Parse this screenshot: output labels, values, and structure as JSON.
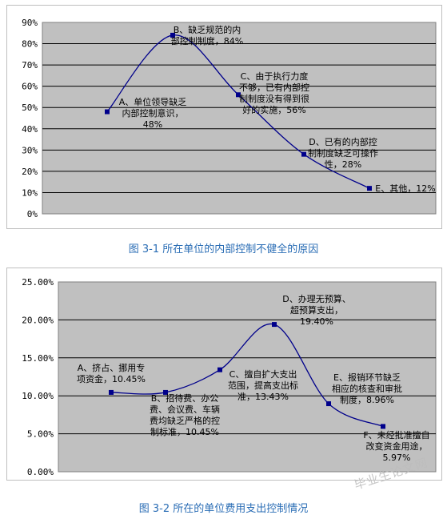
{
  "chart_data": [
    {
      "type": "line",
      "title": "",
      "xlabel": "",
      "ylabel": "",
      "ylim": [
        0,
        90
      ],
      "yticks": [
        "0%",
        "10%",
        "20%",
        "30%",
        "40%",
        "50%",
        "60%",
        "70%",
        "80%",
        "90%"
      ],
      "grid": true,
      "plot_background": "#c0c0c0",
      "line_color": "#00008b",
      "categories": [
        "A",
        "B",
        "C",
        "D",
        "E"
      ],
      "values": [
        48,
        84,
        56,
        28,
        12
      ],
      "data_labels": [
        [
          "A、单位领导缺乏",
          "内部控制意识，",
          "48%"
        ],
        [
          "B、缺乏规范的内",
          "部控制制度，84%"
        ],
        [
          "C、由于执行力度",
          "不够，已有内部控",
          "制制度没有得到很",
          "好的实施，56%"
        ],
        [
          "D、已有的内部控",
          "制制度缺乏可操作",
          "性，28%"
        ],
        [
          "E、其他，12%"
        ]
      ]
    },
    {
      "type": "line",
      "title": "",
      "xlabel": "",
      "ylabel": "",
      "ylim": [
        0,
        25
      ],
      "yticks": [
        "0.00%",
        "5.00%",
        "10.00%",
        "15.00%",
        "20.00%",
        "25.00%"
      ],
      "grid": true,
      "plot_background": "#c0c0c0",
      "line_color": "#00008b",
      "categories": [
        "A",
        "B",
        "C",
        "D",
        "E",
        "F"
      ],
      "values": [
        10.45,
        10.45,
        13.43,
        19.4,
        8.96,
        5.97
      ],
      "data_labels": [
        [
          "A、挤占、挪用专",
          "项资金，10.45%"
        ],
        [
          "B、招待费、办公",
          "费、会议费、车辆",
          "费均缺乏严格的控",
          "制标准，10.45%"
        ],
        [
          "C、擅自扩大支出",
          "范围，提高支出标",
          "准，13.43%"
        ],
        [
          "D、办理无预算、",
          "超预算支出，",
          "19.40%"
        ],
        [
          "E、报销环节缺乏",
          "相应的核查和审批",
          "制度，8.96%"
        ],
        [
          "F、未经批准擅自",
          "改变资金用途，",
          "5.97%"
        ]
      ]
    }
  ],
  "captions": {
    "chart1": "图 3-1 所在单位的内部控制不健全的原因",
    "chart2": "图 3-2 所在的单位费用支出控制情况"
  },
  "watermark": "毕业生论文网"
}
